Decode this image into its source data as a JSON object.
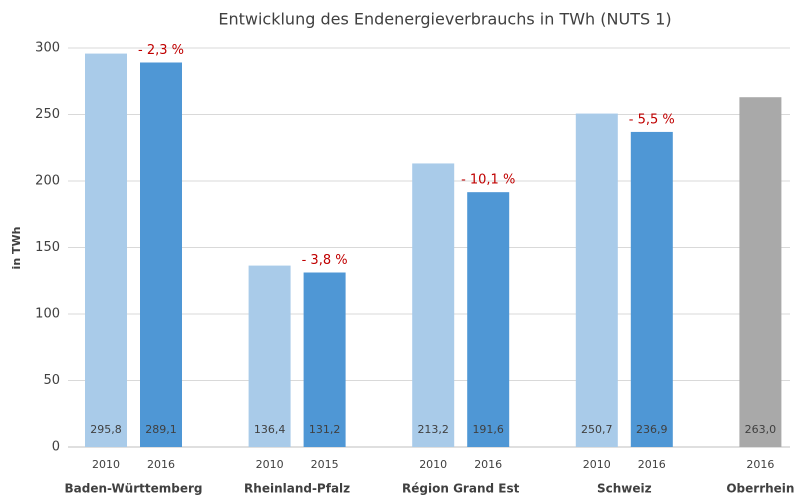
{
  "chart_data": {
    "type": "bar",
    "title": "Entwicklung des Endenergieverbrauchs in TWh (NUTS 1)",
    "ylabel": "in TWh",
    "ylim": [
      0,
      300
    ],
    "yticks": [
      0,
      50,
      100,
      150,
      200,
      250,
      300
    ],
    "grid": true,
    "groups": [
      {
        "name": "Baden-Württemberg",
        "categories": [
          "2010",
          "2016"
        ],
        "values": [
          295.8,
          289.1
        ],
        "value_labels": [
          "295,8",
          "289,1"
        ],
        "colors": [
          "#a9cbe9",
          "#4f97d5"
        ],
        "change": "- 2,3 %"
      },
      {
        "name": "Rheinland-Pfalz",
        "categories": [
          "2010",
          "2015"
        ],
        "values": [
          136.4,
          131.2
        ],
        "value_labels": [
          "136,4",
          "131,2"
        ],
        "colors": [
          "#a9cbe9",
          "#4f97d5"
        ],
        "change": "- 3,8 %"
      },
      {
        "name": "Région Grand Est",
        "categories": [
          "2010",
          "2016"
        ],
        "values": [
          213.2,
          191.6
        ],
        "value_labels": [
          "213,2",
          "191,6"
        ],
        "colors": [
          "#a9cbe9",
          "#4f97d5"
        ],
        "change": "- 10,1 %"
      },
      {
        "name": "Schweiz",
        "categories": [
          "2010",
          "2016"
        ],
        "values": [
          250.7,
          236.9
        ],
        "value_labels": [
          "250,7",
          "236,9"
        ],
        "colors": [
          "#a9cbe9",
          "#4f97d5"
        ],
        "change": "- 5,5 %"
      },
      {
        "name": "Oberrhein",
        "categories": [
          "2016"
        ],
        "values": [
          263.0
        ],
        "value_labels": [
          "263,0"
        ],
        "colors": [
          "#a9a9a9"
        ]
      }
    ]
  }
}
